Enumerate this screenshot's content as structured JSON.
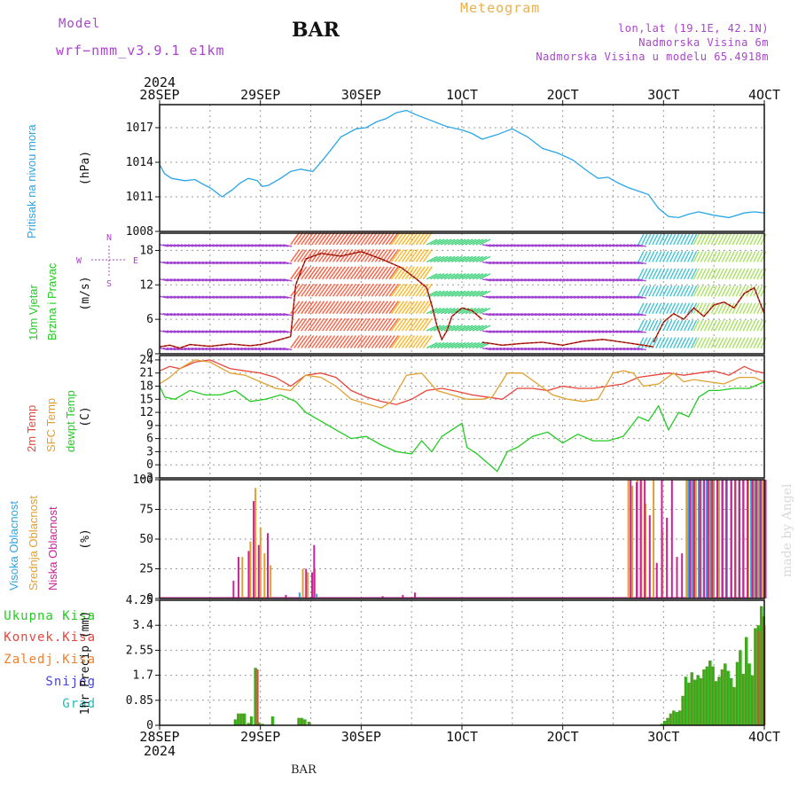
{
  "header": {
    "model_label": "Model",
    "model_name": "wrf−nmm_v3.9.1  e1km",
    "station": "BAR",
    "product": "Meteogram",
    "location_lines": [
      "lon,lat (19.1E, 42.1N)",
      "Nadmorska Visina 6m",
      "Nadmorska Visina u modelu 65.4918m"
    ],
    "footer_station": "BAR",
    "watermark": "made by Angel"
  },
  "colors": {
    "pressure": "#2aa6e8",
    "t2m": "#e8453c",
    "sfc": "#e0a030",
    "dewpt": "#22cc22",
    "high_cloud": "#2aa6e8",
    "mid_cloud": "#e0a030",
    "low_cloud": "#cc2299",
    "total_precip": "#22cc22",
    "conv_precip": "#e8453c",
    "frozen_precip": "#f08030",
    "snow": "#4444dd",
    "hail": "#22bbbb",
    "magenta_text": "#aa44cc"
  },
  "chart_data": [
    {
      "type": "line",
      "title": "Pritisak na nivou mora",
      "ylabel": "(hPa)",
      "top_axis_year": "2024",
      "x_ticks": [
        "28SEP",
        "29SEP",
        "30SEP",
        "1OCT",
        "2OCT",
        "3OCT",
        "4OCT"
      ],
      "x_range_days": [
        0,
        6
      ],
      "y_ticks": [
        "1017",
        "1014",
        "1011",
        "1008"
      ],
      "ylim": [
        1008,
        1019
      ],
      "grid": true,
      "series": [
        {
          "name": "Pritisak na nivou mora",
          "x": [
            0,
            0.05,
            0.12,
            0.25,
            0.35,
            0.45,
            0.5,
            0.62,
            0.72,
            0.8,
            0.88,
            0.97,
            1.02,
            1.08,
            1.2,
            1.3,
            1.4,
            1.52,
            1.62,
            1.8,
            1.95,
            2.05,
            2.15,
            2.25,
            2.35,
            2.45,
            2.55,
            2.7,
            2.85,
            3.0,
            3.1,
            3.2,
            3.35,
            3.5,
            3.65,
            3.8,
            3.95,
            4.1,
            4.25,
            4.35,
            4.45,
            4.55,
            4.65,
            4.75,
            4.85,
            4.95,
            5.05,
            5.15,
            5.25,
            5.35,
            5.5,
            5.65,
            5.8,
            5.9,
            6.0
          ],
          "y": [
            1013.8,
            1013.0,
            1012.6,
            1012.4,
            1012.5,
            1012.0,
            1011.8,
            1011.0,
            1011.6,
            1012.2,
            1012.6,
            1012.4,
            1011.9,
            1012.0,
            1012.6,
            1013.2,
            1013.4,
            1013.2,
            1014.2,
            1016.2,
            1016.9,
            1017.0,
            1017.5,
            1017.8,
            1018.3,
            1018.5,
            1018.1,
            1017.6,
            1017.1,
            1016.8,
            1016.5,
            1016.0,
            1016.4,
            1016.9,
            1016.2,
            1015.2,
            1014.8,
            1014.2,
            1013.2,
            1012.6,
            1012.7,
            1012.2,
            1011.8,
            1011.5,
            1011.2,
            1010.0,
            1009.3,
            1009.2,
            1009.5,
            1009.7,
            1009.4,
            1009.2,
            1009.6,
            1009.7,
            1009.6
          ]
        }
      ]
    },
    {
      "type": "line",
      "title": "10m Vjetar Brzina i Pravac",
      "ylabel": "(m/s)",
      "compass": [
        "N",
        "E",
        "S",
        "W"
      ],
      "y_ticks": [
        "18",
        "12",
        "6",
        "0"
      ],
      "ylim": [
        0,
        21
      ],
      "grid": true,
      "series": [
        {
          "x": [
            0,
            0.1,
            0.2,
            0.3,
            0.5,
            0.7,
            0.9,
            1.0,
            1.1,
            1.2,
            1.3
          ],
          "y": [
            1.2,
            1.5,
            1.0,
            1.6,
            1.3,
            1.7,
            1.4,
            1.6,
            2.0,
            2.5,
            3.0
          ]
        },
        {
          "x": [
            1.3,
            1.35,
            1.45,
            1.6,
            1.8,
            2.0,
            2.2,
            2.4,
            2.55,
            2.65,
            2.7,
            2.75,
            2.8,
            2.85,
            2.9,
            3.0,
            3.1,
            3.2
          ],
          "y": [
            3.0,
            12.0,
            16.5,
            17.5,
            17.0,
            17.8,
            16.5,
            15.0,
            13.0,
            11.5,
            8.5,
            5.0,
            2.5,
            4.0,
            6.5,
            8.0,
            7.5,
            6.0
          ]
        },
        {
          "x": [
            3.2,
            3.4,
            3.6,
            3.8,
            4.0,
            4.2,
            4.4,
            4.6,
            4.8,
            4.9
          ],
          "y": [
            2.0,
            1.5,
            1.8,
            2.0,
            1.5,
            2.2,
            2.5,
            2.0,
            1.5,
            1.2
          ]
        },
        {
          "x": [
            4.9,
            5.0,
            5.1,
            5.2,
            5.3,
            5.4,
            5.5,
            5.6,
            5.7,
            5.8,
            5.9,
            6.0
          ],
          "y": [
            2.0,
            5.5,
            7.0,
            6.0,
            8.0,
            6.5,
            8.5,
            9.0,
            8.0,
            10.5,
            11.5,
            7.0
          ]
        }
      ],
      "barb_color_rows": [
        {
          "x": [
            0.0,
            1.25
          ],
          "color": "#9933cc"
        },
        {
          "x": [
            1.3,
            2.3
          ],
          "color": "#ff4422"
        },
        {
          "x": [
            2.3,
            2.65
          ],
          "color": "#ffaa00"
        },
        {
          "x": [
            2.65,
            3.2
          ],
          "color": "#22cc66"
        },
        {
          "x": [
            3.2,
            4.75
          ],
          "color": "#9933cc"
        },
        {
          "x": [
            4.75,
            5.3
          ],
          "color": "#22bbcc"
        },
        {
          "x": [
            5.3,
            6.0
          ],
          "color": "#99dd44"
        }
      ]
    },
    {
      "type": "line",
      "titles": [
        "2m Temp",
        "SFC Temp",
        "dewpt Temp"
      ],
      "ylabel": "(C)",
      "y_ticks": [
        "24",
        "21",
        "18",
        "15",
        "12",
        "9",
        "6",
        "3",
        "0",
        "−3"
      ],
      "ylim": [
        -3,
        25
      ],
      "grid": true,
      "series": [
        {
          "name": "2m Temp",
          "x": [
            0,
            0.1,
            0.2,
            0.35,
            0.5,
            0.7,
            0.85,
            1.0,
            1.15,
            1.3,
            1.45,
            1.6,
            1.75,
            1.9,
            2.05,
            2.2,
            2.35,
            2.5,
            2.65,
            2.8,
            2.95,
            3.1,
            3.25,
            3.4,
            3.55,
            3.7,
            3.85,
            4.0,
            4.15,
            4.3,
            4.45,
            4.6,
            4.75,
            4.9,
            5.05,
            5.2,
            5.35,
            5.5,
            5.65,
            5.8,
            5.9,
            6.0
          ],
          "y": [
            21.5,
            22.5,
            22.0,
            23.5,
            24.0,
            22.0,
            21.5,
            21.0,
            20.0,
            18.0,
            20.5,
            21.0,
            20.0,
            17.0,
            15.5,
            14.5,
            13.8,
            15.0,
            17.0,
            17.5,
            16.8,
            16.0,
            15.5,
            15.0,
            17.5,
            17.5,
            17.0,
            18.0,
            17.5,
            17.5,
            18.0,
            18.5,
            20.0,
            20.5,
            21.0,
            20.5,
            21.0,
            21.5,
            20.5,
            22.5,
            21.5,
            21.0
          ]
        },
        {
          "name": "SFC Temp",
          "x": [
            0,
            0.1,
            0.2,
            0.35,
            0.5,
            0.7,
            0.85,
            1.0,
            1.15,
            1.3,
            1.45,
            1.6,
            1.75,
            1.9,
            2.05,
            2.2,
            2.3,
            2.45,
            2.6,
            2.75,
            2.9,
            3.05,
            3.2,
            3.3,
            3.45,
            3.6,
            3.75,
            3.9,
            4.05,
            4.2,
            4.35,
            4.5,
            4.6,
            4.7,
            4.8,
            4.95,
            5.1,
            5.2,
            5.3,
            5.45,
            5.6,
            5.75,
            5.9,
            6.0
          ],
          "y": [
            18.5,
            20.0,
            22.0,
            24.0,
            23.5,
            21.0,
            20.5,
            19.0,
            17.5,
            17.0,
            20.5,
            20.0,
            18.0,
            15.0,
            14.0,
            13.0,
            14.5,
            20.5,
            21.0,
            17.0,
            16.0,
            15.0,
            15.0,
            15.5,
            21.0,
            21.0,
            18.5,
            16.0,
            15.0,
            14.5,
            15.0,
            21.0,
            21.5,
            21.0,
            18.0,
            18.5,
            21.0,
            19.0,
            19.5,
            19.0,
            18.5,
            20.0,
            20.0,
            19.0
          ]
        },
        {
          "name": "dewpt Temp",
          "x": [
            0,
            0.05,
            0.15,
            0.3,
            0.45,
            0.6,
            0.75,
            0.9,
            1.05,
            1.2,
            1.35,
            1.45,
            1.6,
            1.75,
            1.9,
            2.05,
            2.2,
            2.35,
            2.5,
            2.6,
            2.7,
            2.8,
            2.9,
            3.0,
            3.05,
            3.15,
            3.25,
            3.35,
            3.45,
            3.55,
            3.7,
            3.85,
            4.0,
            4.15,
            4.3,
            4.45,
            4.6,
            4.75,
            4.85,
            4.95,
            5.05,
            5.15,
            5.25,
            5.35,
            5.45,
            5.55,
            5.7,
            5.85,
            6.0
          ],
          "y": [
            18.0,
            15.5,
            15.0,
            17.0,
            16.0,
            16.0,
            17.0,
            14.5,
            15.0,
            16.0,
            14.5,
            12.0,
            10.0,
            8.0,
            6.0,
            6.5,
            4.5,
            3.0,
            2.5,
            5.5,
            3.0,
            6.5,
            8.0,
            9.5,
            4.0,
            2.5,
            0.5,
            -1.5,
            3.0,
            4.0,
            6.5,
            7.5,
            5.0,
            7.0,
            5.5,
            5.5,
            6.5,
            11.0,
            10.0,
            13.5,
            8.0,
            12.0,
            11.0,
            15.5,
            17.0,
            17.0,
            17.5,
            17.5,
            19.0
          ]
        }
      ]
    },
    {
      "type": "bar",
      "titles": [
        "Visoka Oblacnost",
        "Srednja Oblacnost",
        "Niska Oblacnost"
      ],
      "ylabel": "(%)",
      "y_ticks": [
        "100",
        "75",
        "50",
        "25",
        "0"
      ],
      "ylim": [
        0,
        100
      ],
      "grid": true,
      "series": [
        {
          "name": "Visoka Oblacnost",
          "x": [
            1.38,
            1.55,
            5.22,
            5.24,
            5.28,
            5.31,
            5.34,
            5.36,
            5.39,
            5.42,
            5.46,
            5.49,
            5.54,
            5.58,
            5.62,
            5.66,
            5.7,
            5.74,
            5.78,
            5.83,
            5.86,
            5.9,
            5.94,
            5.97
          ],
          "values": [
            5,
            4,
            100,
            100,
            100,
            100,
            100,
            100,
            100,
            100,
            100,
            100,
            100,
            100,
            100,
            100,
            100,
            100,
            100,
            100,
            100,
            100,
            100,
            100
          ]
        },
        {
          "name": "Srednja Oblacnost",
          "x": [
            0.8,
            0.88,
            0.93,
            0.98,
            1.02,
            1.08,
            1.4,
            1.45,
            1.52,
            4.63,
            4.67,
            4.72,
            4.76,
            4.8,
            4.88,
            4.97,
            5.21,
            5.25,
            5.3,
            5.35,
            5.38,
            5.43,
            5.47,
            5.52,
            5.56,
            5.6,
            5.65,
            5.69,
            5.73,
            5.77,
            5.82,
            5.87,
            5.92,
            5.96
          ],
          "values": [
            35,
            48,
            93,
            60,
            38,
            28,
            25,
            22,
            25,
            100,
            95,
            100,
            100,
            80,
            100,
            58,
            100,
            100,
            100,
            100,
            100,
            100,
            100,
            100,
            100,
            100,
            100,
            100,
            100,
            100,
            100,
            100,
            100,
            100
          ]
        },
        {
          "name": "Niska Oblacnost",
          "x": [
            0.7,
            0.75,
            0.85,
            0.9,
            0.95,
            1.04,
            1.22,
            1.42,
            1.48,
            1.5,
            2.18,
            2.38,
            2.5,
            4.64,
            4.7,
            4.74,
            4.78,
            4.83,
            4.9,
            4.95,
            5.0,
            5.05,
            5.1,
            5.15,
            5.23,
            5.27,
            5.33,
            5.37,
            5.41,
            5.45,
            5.5,
            5.55,
            5.59,
            5.64,
            5.68,
            5.72,
            5.76,
            5.8,
            5.85,
            5.89,
            5.93,
            5.98
          ],
          "values": [
            15,
            35,
            40,
            82,
            45,
            55,
            3,
            25,
            22,
            45,
            2,
            3,
            5,
            100,
            98,
            100,
            100,
            70,
            30,
            100,
            68,
            100,
            35,
            38,
            100,
            100,
            100,
            100,
            100,
            100,
            100,
            100,
            100,
            100,
            100,
            100,
            100,
            100,
            100,
            100,
            100,
            100
          ]
        }
      ]
    },
    {
      "type": "bar",
      "titles": [
        "Ukupna Kisa",
        "Konvek.Kisa",
        "Zaledj.Kisa",
        "Snijeg",
        "Grad"
      ],
      "ylabel": "1hr Precip (mm)",
      "bottom_axis_year": "2024",
      "y_ticks": [
        "4.25",
        "3.4",
        "2.55",
        "1.7",
        "0.85",
        "0"
      ],
      "ylim": [
        0,
        4.25
      ],
      "grid": true,
      "series": [
        {
          "name": "Ukupna Kisa",
          "x": [
            0.75,
            0.78,
            0.81,
            0.84,
            0.88,
            0.91,
            0.95,
            0.98,
            1.02,
            1.12,
            1.38,
            1.41,
            1.44,
            1.48,
            4.98,
            5.01,
            5.04,
            5.07,
            5.1,
            5.13,
            5.16,
            5.19,
            5.22,
            5.25,
            5.28,
            5.31,
            5.34,
            5.37,
            5.4,
            5.43,
            5.46,
            5.49,
            5.52,
            5.55,
            5.58,
            5.61,
            5.64,
            5.67,
            5.7,
            5.73,
            5.76,
            5.79,
            5.82,
            5.85,
            5.88,
            5.91,
            5.94,
            5.97,
            5.99
          ],
          "values": [
            0.2,
            0.4,
            0.4,
            0.4,
            0.08,
            0.3,
            1.95,
            0.1,
            0.05,
            0.3,
            0.25,
            0.25,
            0.2,
            0.12,
            0.05,
            0.15,
            0.25,
            0.4,
            0.5,
            0.45,
            0.5,
            1.0,
            1.65,
            1.45,
            1.8,
            1.55,
            1.7,
            1.6,
            1.9,
            2.0,
            2.2,
            2.0,
            1.5,
            1.65,
            1.9,
            2.1,
            1.85,
            1.6,
            1.3,
            2.15,
            2.55,
            1.75,
            3.0,
            2.1,
            1.7,
            3.3,
            3.4,
            4.05,
            3.7
          ]
        },
        {
          "name": "Konvek.Kisa",
          "x": [
            0.96,
            5.93,
            5.99
          ],
          "values": [
            1.9,
            3.2,
            3.4
          ]
        }
      ]
    }
  ]
}
